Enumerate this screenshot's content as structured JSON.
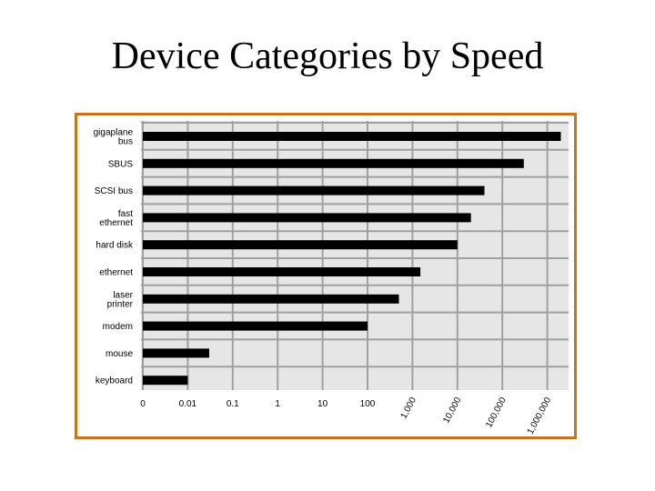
{
  "slide": {
    "title": "Device Categories by Speed"
  },
  "chart_data": {
    "type": "bar",
    "orientation": "horizontal",
    "scale": "log",
    "categories": [
      [
        "gigaplane",
        "bus"
      ],
      [
        "SBUS"
      ],
      [
        "SCSI bus"
      ],
      [
        "fast",
        "ethernet"
      ],
      [
        "hard disk"
      ],
      [
        "ethernet"
      ],
      [
        "laser",
        "printer"
      ],
      [
        "modem"
      ],
      [
        "mouse"
      ],
      [
        "keyboard"
      ]
    ],
    "values": [
      2000000,
      300000,
      40000,
      20000,
      10000,
      1500,
      500,
      100,
      0.03,
      0.01
    ],
    "x_ticks": [
      "0",
      "0.01",
      "0.1",
      "1",
      "10",
      "100",
      "1,000",
      "10,000",
      "100,000",
      "1,000,000"
    ],
    "grid": true,
    "colors": {
      "bar": "#000000",
      "plot_background": "#e6e6e6",
      "gridline": "#a0a0a0",
      "frame_border": "#c8731f"
    }
  }
}
